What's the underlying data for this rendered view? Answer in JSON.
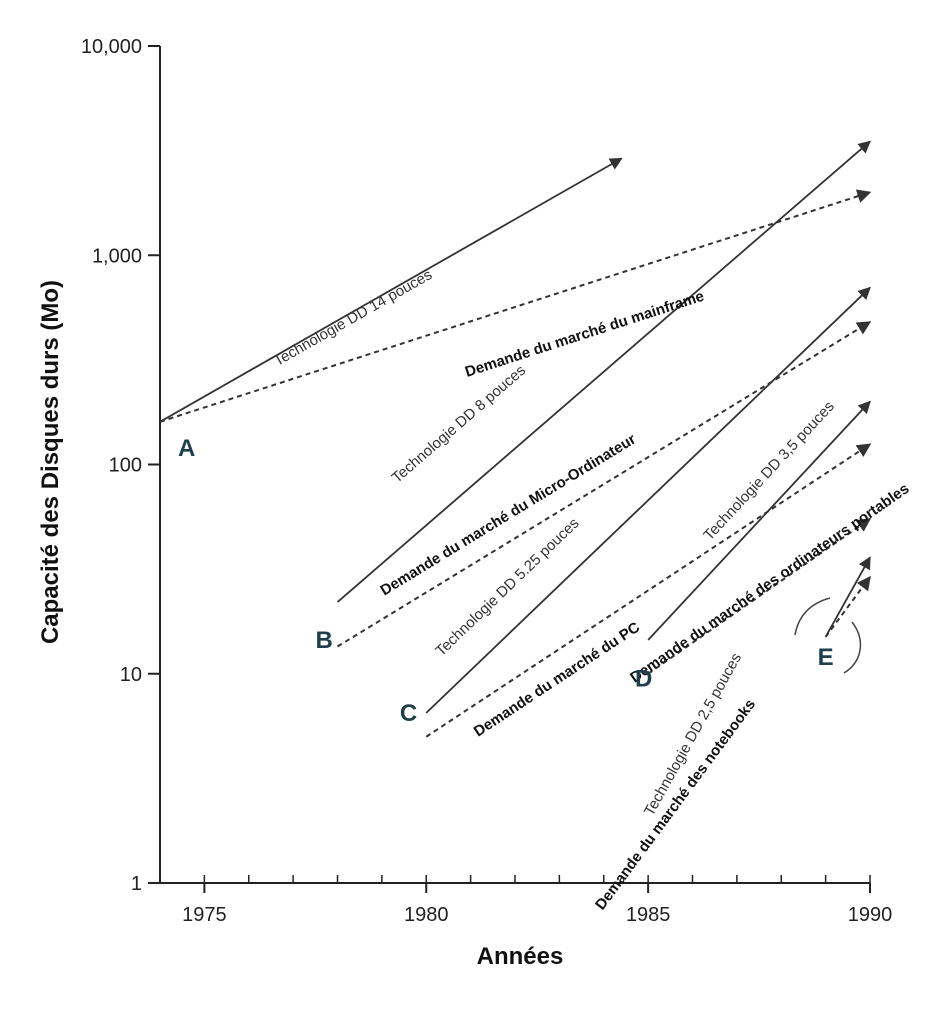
{
  "chart_data": {
    "type": "line",
    "xlabel": "Années",
    "ylabel": "Capacité des Disques durs (Mo)",
    "yscale": "log",
    "xlim": [
      1974,
      1990
    ],
    "ylim": [
      1,
      10000
    ],
    "x_ticks": [
      "1975",
      "1980",
      "1985",
      "1990"
    ],
    "y_ticks": [
      "1",
      "10",
      "100",
      "1,000",
      "10,000"
    ],
    "x_tick_values": [
      1975,
      1980,
      1985,
      1990
    ],
    "y_tick_values": [
      1,
      10,
      100,
      1000,
      10000
    ],
    "point_labels": [
      {
        "text": "A",
        "x": 1974.6,
        "y": 120
      },
      {
        "text": "B",
        "x": 1977.7,
        "y": 14.5
      },
      {
        "text": "C",
        "x": 1979.6,
        "y": 6.5
      },
      {
        "text": "D",
        "x": 1984.9,
        "y": 9.5
      },
      {
        "text": "E",
        "x": 1989.0,
        "y": 12
      }
    ],
    "series": [
      {
        "name": "Technologie DD 14 pouces",
        "style": "solid",
        "x": [
          1974,
          1984.4
        ],
        "y": [
          160,
          2900
        ],
        "label_x": 1978.4,
        "label_y": 480
      },
      {
        "name": "Demande du marché du mainframe",
        "style": "dashed",
        "x": [
          1974,
          1990
        ],
        "y": [
          160,
          2000
        ],
        "label_x": 1983.6,
        "label_y": 400
      },
      {
        "name": "Technologie DD 8 pouces",
        "style": "solid",
        "x": [
          1978,
          1990
        ],
        "y": [
          22,
          3500
        ],
        "label_x": 1980.8,
        "label_y": 150
      },
      {
        "name": "Demande du marché du Micro-Ordinateur",
        "style": "dashed",
        "x": [
          1978,
          1990
        ],
        "y": [
          13.5,
          480
        ],
        "label_x": 1981.9,
        "label_y": 55
      },
      {
        "name": "Technologie DD 5.25 pouces",
        "style": "solid",
        "x": [
          1980,
          1990
        ],
        "y": [
          6.5,
          700
        ],
        "label_x": 1981.9,
        "label_y": 25
      },
      {
        "name": "Demande du marché du PC",
        "style": "dashed",
        "x": [
          1980,
          1990
        ],
        "y": [
          5,
          125
        ],
        "label_x": 1983.0,
        "label_y": 9
      },
      {
        "name": "Technologie DD 3,5 pouces",
        "style": "solid",
        "x": [
          1985,
          1990
        ],
        "y": [
          14.5,
          200
        ],
        "label_x": 1987.8,
        "label_y": 90
      },
      {
        "name": "Demande du marché des ordinateurs portables",
        "style": "dashed",
        "x": [
          1985,
          1990
        ],
        "y": [
          10,
          55
        ],
        "label_x": 1987.8,
        "label_y": 26
      },
      {
        "name": "Technologie DD 2,5 pouces",
        "style": "solid",
        "x": [
          1989,
          1990
        ],
        "y": [
          15,
          36
        ],
        "label_x": 1986.1,
        "label_y": 5
      },
      {
        "name": "Demande du marché des notebooks",
        "style": "dashed",
        "x": [
          1989,
          1990
        ],
        "y": [
          15,
          29
        ],
        "label_x": 1985.7,
        "label_y": 2.3
      }
    ]
  }
}
